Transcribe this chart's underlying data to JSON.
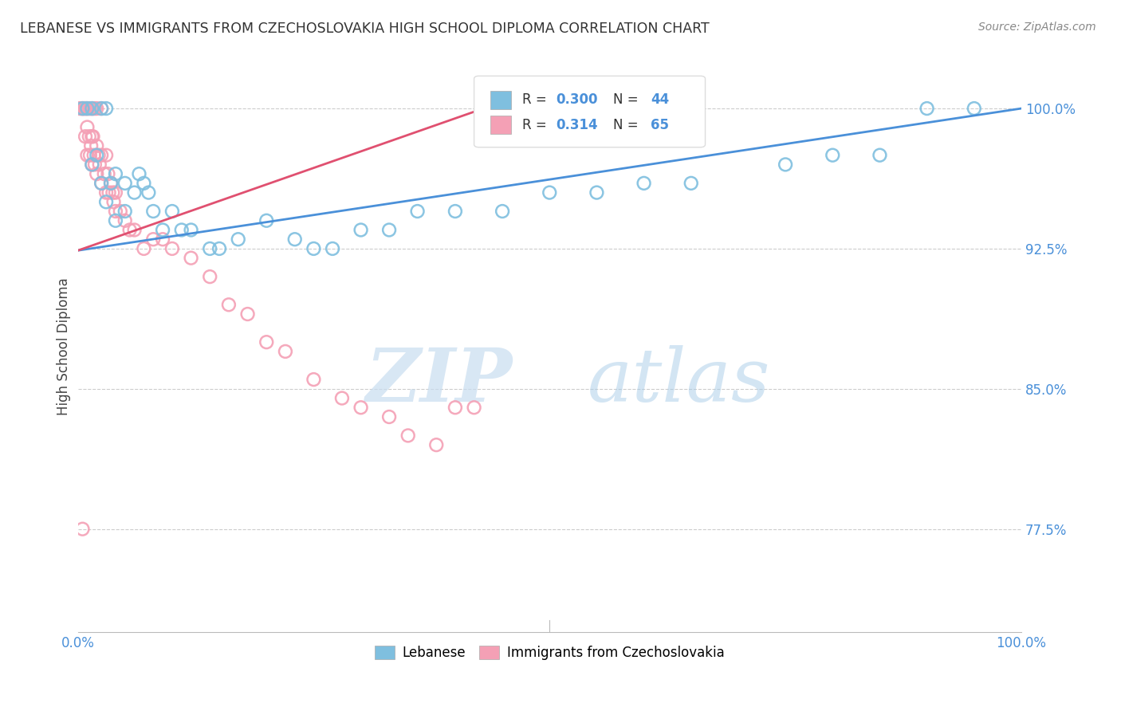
{
  "title": "LEBANESE VS IMMIGRANTS FROM CZECHOSLOVAKIA HIGH SCHOOL DIPLOMA CORRELATION CHART",
  "source": "Source: ZipAtlas.com",
  "ylabel": "High School Diploma",
  "y_tick_labels": [
    "77.5%",
    "85.0%",
    "92.5%",
    "100.0%"
  ],
  "y_tick_values": [
    0.775,
    0.85,
    0.925,
    1.0
  ],
  "xlim": [
    0.0,
    1.0
  ],
  "ylim": [
    0.72,
    1.025
  ],
  "legend_R1": "0.300",
  "legend_N1": "44",
  "legend_R2": "0.314",
  "legend_N2": "65",
  "color_blue": "#7fbfdf",
  "color_pink": "#f4a0b5",
  "color_blue_line": "#4a90d9",
  "color_pink_line": "#e05070",
  "color_blue_text": "#4a90d9",
  "watermark_zip": "ZIP",
  "watermark_atlas": "atlas",
  "blue_line_x": [
    0.0,
    1.0
  ],
  "blue_line_y": [
    0.924,
    1.0
  ],
  "pink_line_x": [
    0.0,
    0.43
  ],
  "pink_line_y": [
    0.924,
    1.0
  ],
  "blue_scatter_x": [
    0.005,
    0.01,
    0.015,
    0.015,
    0.02,
    0.025,
    0.025,
    0.03,
    0.03,
    0.035,
    0.04,
    0.04,
    0.05,
    0.05,
    0.06,
    0.065,
    0.07,
    0.075,
    0.08,
    0.09,
    0.1,
    0.11,
    0.12,
    0.14,
    0.15,
    0.17,
    0.2,
    0.23,
    0.25,
    0.27,
    0.3,
    0.33,
    0.36,
    0.4,
    0.45,
    0.5,
    0.55,
    0.6,
    0.65,
    0.75,
    0.8,
    0.85,
    0.9,
    0.95
  ],
  "blue_scatter_y": [
    1.0,
    1.0,
    1.0,
    0.97,
    0.975,
    1.0,
    0.96,
    1.0,
    0.95,
    0.96,
    0.965,
    0.94,
    0.96,
    0.945,
    0.955,
    0.965,
    0.96,
    0.955,
    0.945,
    0.935,
    0.945,
    0.935,
    0.935,
    0.925,
    0.925,
    0.93,
    0.94,
    0.93,
    0.925,
    0.925,
    0.935,
    0.935,
    0.945,
    0.945,
    0.945,
    0.955,
    0.955,
    0.96,
    0.96,
    0.97,
    0.975,
    0.975,
    1.0,
    1.0
  ],
  "pink_scatter_x": [
    0.002,
    0.004,
    0.005,
    0.006,
    0.007,
    0.008,
    0.008,
    0.009,
    0.01,
    0.01,
    0.01,
    0.012,
    0.012,
    0.013,
    0.013,
    0.014,
    0.015,
    0.015,
    0.015,
    0.016,
    0.016,
    0.017,
    0.018,
    0.018,
    0.02,
    0.02,
    0.02,
    0.022,
    0.023,
    0.025,
    0.025,
    0.025,
    0.028,
    0.03,
    0.03,
    0.032,
    0.033,
    0.035,
    0.037,
    0.038,
    0.04,
    0.04,
    0.045,
    0.05,
    0.055,
    0.06,
    0.07,
    0.08,
    0.09,
    0.1,
    0.12,
    0.14,
    0.16,
    0.18,
    0.2,
    0.22,
    0.25,
    0.28,
    0.3,
    0.33,
    0.35,
    0.38,
    0.4,
    0.42,
    0.005
  ],
  "pink_scatter_y": [
    1.0,
    1.0,
    1.0,
    1.0,
    1.0,
    1.0,
    0.985,
    1.0,
    1.0,
    0.99,
    0.975,
    1.0,
    0.985,
    1.0,
    0.975,
    0.98,
    1.0,
    0.985,
    0.97,
    1.0,
    0.985,
    0.975,
    1.0,
    0.97,
    1.0,
    0.98,
    0.965,
    0.975,
    0.97,
    1.0,
    0.975,
    0.96,
    0.965,
    0.975,
    0.955,
    0.965,
    0.955,
    0.96,
    0.955,
    0.95,
    0.955,
    0.945,
    0.945,
    0.94,
    0.935,
    0.935,
    0.925,
    0.93,
    0.93,
    0.925,
    0.92,
    0.91,
    0.895,
    0.89,
    0.875,
    0.87,
    0.855,
    0.845,
    0.84,
    0.835,
    0.825,
    0.82,
    0.84,
    0.84,
    0.775
  ]
}
